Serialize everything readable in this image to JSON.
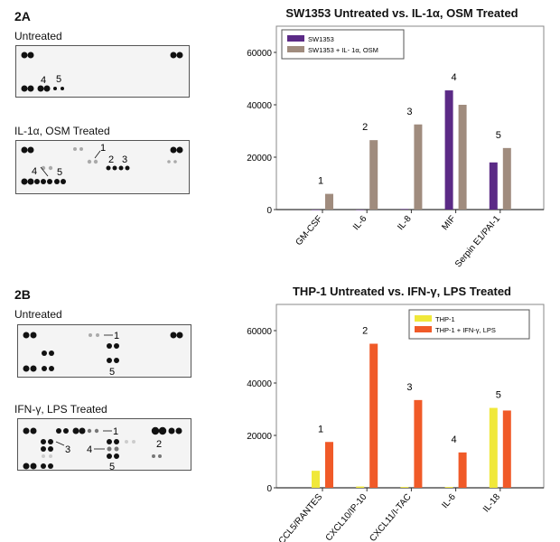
{
  "panels": [
    {
      "label": "2A",
      "blots": [
        {
          "title": "Untreated",
          "markers": [
            "4",
            "5"
          ]
        },
        {
          "title": "IL-1α, OSM Treated",
          "markers": [
            "1",
            "2",
            "3",
            "4",
            "5"
          ]
        }
      ]
    },
    {
      "label": "2B",
      "blots": [
        {
          "title": "Untreated",
          "markers": [
            "1",
            "5"
          ]
        },
        {
          "title": "IFN-γ, LPS Treated",
          "markers": [
            "1",
            "2",
            "3",
            "4",
            "5"
          ]
        }
      ]
    }
  ],
  "chart_data": [
    {
      "type": "bar",
      "title": "SW1353 Untreated vs. IL-1α, OSM Treated",
      "categories": [
        "GM-CSF",
        "IL-6",
        "IL-8",
        "MIF",
        "Serpin E1/PAI-1"
      ],
      "annotations": [
        "1",
        "2",
        "3",
        "4",
        "5"
      ],
      "series": [
        {
          "name": "SW1353",
          "color": "#5b2a86",
          "values": [
            0,
            0,
            200,
            45500,
            18000
          ]
        },
        {
          "name": "SW1353 + IL- 1α, OSM",
          "color": "#a08c7e",
          "values": [
            6000,
            26500,
            32500,
            40000,
            23500
          ]
        }
      ],
      "yticks": [
        "0",
        "20000",
        "40000",
        "60000"
      ],
      "ylim": [
        0,
        70000
      ],
      "legend": "top-left",
      "grid": false
    },
    {
      "type": "bar",
      "title": "THP-1 Untreated vs. IFN-γ, LPS Treated",
      "categories": [
        "CCL5/RANTES",
        "CXCL10/IP-10",
        "CXCL11/I-TAC",
        "IL-6",
        "IL-18"
      ],
      "annotations": [
        "1",
        "2",
        "3",
        "4",
        "5"
      ],
      "series": [
        {
          "name": "THP-1",
          "color": "#f0e83a",
          "values": [
            6500,
            500,
            300,
            300,
            30500
          ]
        },
        {
          "name": "THP-1 + IFN-γ, LPS",
          "color": "#f05a28",
          "values": [
            17500,
            55000,
            33500,
            13500,
            29500
          ]
        }
      ],
      "yticks": [
        "0",
        "20000",
        "40000",
        "60000"
      ],
      "ylim": [
        0,
        70000
      ],
      "legend": "top-right",
      "grid": false
    }
  ]
}
